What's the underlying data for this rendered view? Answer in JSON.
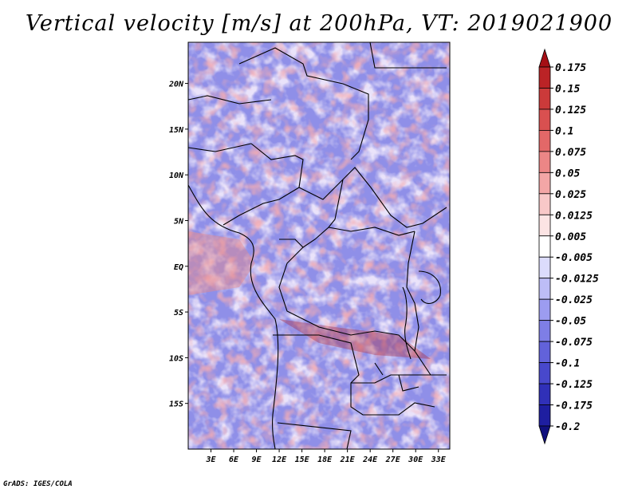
{
  "title": "Vertical velocity [m/s] at 200hPa, VT: 2019021900",
  "credit": "GrADS: IGES/COLA",
  "map": {
    "lon_range": [
      0,
      34.5
    ],
    "lat_range": [
      -20,
      24.5
    ],
    "lat_ticks": [
      {
        "value": 20,
        "label": "20N"
      },
      {
        "value": 15,
        "label": "15N"
      },
      {
        "value": 10,
        "label": "10N"
      },
      {
        "value": 5,
        "label": "5N"
      },
      {
        "value": 0,
        "label": "EQ"
      },
      {
        "value": -5,
        "label": "5S"
      },
      {
        "value": -10,
        "label": "10S"
      },
      {
        "value": -15,
        "label": "15S"
      }
    ],
    "lon_ticks": [
      {
        "value": 3,
        "label": "3E"
      },
      {
        "value": 6,
        "label": "6E"
      },
      {
        "value": 9,
        "label": "9E"
      },
      {
        "value": 12,
        "label": "12E"
      },
      {
        "value": 15,
        "label": "15E"
      },
      {
        "value": 18,
        "label": "18E"
      },
      {
        "value": 21,
        "label": "21E"
      },
      {
        "value": 24,
        "label": "24E"
      },
      {
        "value": 27,
        "label": "27E"
      },
      {
        "value": 30,
        "label": "30E"
      },
      {
        "value": 33,
        "label": "33E"
      }
    ]
  },
  "colorbar": {
    "levels": [
      "0.175",
      "0.15",
      "0.125",
      "0.1",
      "0.075",
      "0.05",
      "0.025",
      "0.0125",
      "0.005",
      "-0.005",
      "-0.0125",
      "-0.025",
      "-0.05",
      "-0.075",
      "-0.1",
      "-0.125",
      "-0.175",
      "-0.2"
    ],
    "colors": [
      "#a50f15",
      "#bb2326",
      "#cb3a3a",
      "#d95050",
      "#e36868",
      "#ec8686",
      "#f3a6a6",
      "#f8c8c8",
      "#fce4e4",
      "#ffffff",
      "#dcdcfc",
      "#bdbdf6",
      "#9c9cf0",
      "#7e7ee6",
      "#6262da",
      "#4848cc",
      "#3030b8",
      "#1e1ea0",
      "#10107e"
    ]
  }
}
